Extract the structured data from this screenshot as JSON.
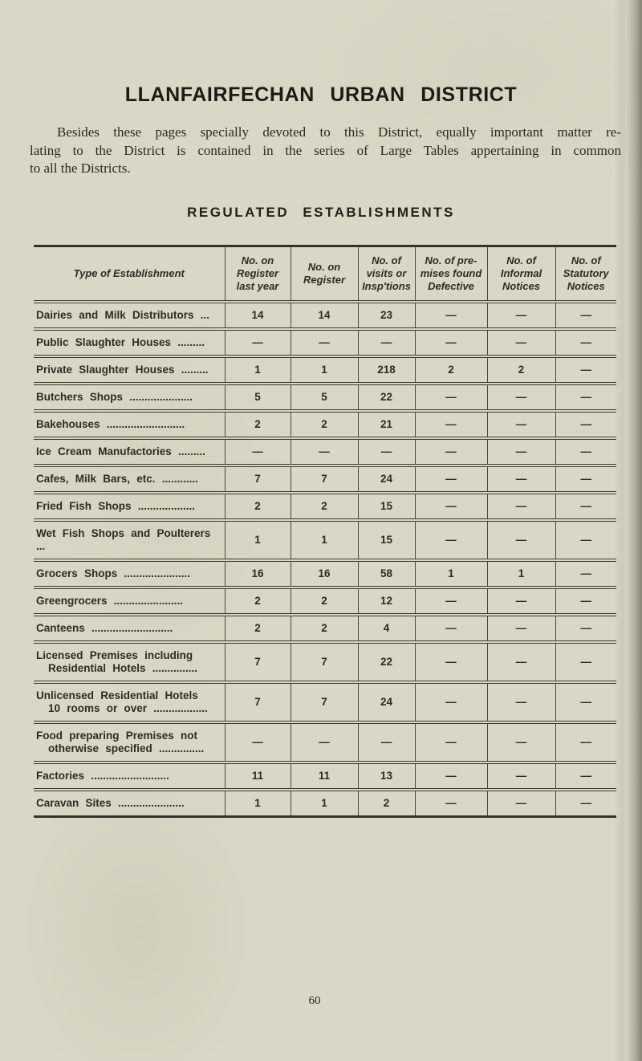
{
  "page": {
    "title": "LLANFAIRFECHAN URBAN DISTRICT",
    "intro_lines": [
      "Besides these pages specially devoted to this District, equally important matter re-",
      "lating to the District is contained in the series of Large Tables appertaining in common",
      "to all the Districts."
    ],
    "page_number": "60"
  },
  "table": {
    "heading": "REGULATED ESTABLISHMENTS",
    "columns": [
      {
        "lines": [
          "Type of Establishment"
        ]
      },
      {
        "lines": [
          "No. on",
          "Register",
          "last year"
        ]
      },
      {
        "lines": [
          "No. on",
          "Register"
        ]
      },
      {
        "lines": [
          "No. of",
          "visits or",
          "Insp'tions"
        ]
      },
      {
        "lines": [
          "No. of pre-",
          "mises found",
          "Defective"
        ]
      },
      {
        "lines": [
          "No. of",
          "Informal",
          "Notices"
        ]
      },
      {
        "lines": [
          "No. of",
          "Statutory",
          "Notices"
        ]
      }
    ],
    "rows": [
      {
        "label": "Dairies and Milk Distributors ...",
        "label2": "",
        "values": [
          "14",
          "14",
          "23",
          "—",
          "—",
          "—"
        ]
      },
      {
        "label": "Public Slaughter Houses .........",
        "label2": "",
        "values": [
          "—",
          "—",
          "—",
          "—",
          "—",
          "—"
        ]
      },
      {
        "label": "Private Slaughter Houses .........",
        "label2": "",
        "values": [
          "1",
          "1",
          "218",
          "2",
          "2",
          "—"
        ]
      },
      {
        "label": "Butchers Shops .....................",
        "label2": "",
        "values": [
          "5",
          "5",
          "22",
          "—",
          "—",
          "—"
        ]
      },
      {
        "label": "Bakehouses ..........................",
        "label2": "",
        "values": [
          "2",
          "2",
          "21",
          "—",
          "—",
          "—"
        ]
      },
      {
        "label": "Ice Cream Manufactories .........",
        "label2": "",
        "values": [
          "—",
          "—",
          "—",
          "—",
          "—",
          "—"
        ]
      },
      {
        "label": "Cafes, Milk Bars, etc. ............",
        "label2": "",
        "values": [
          "7",
          "7",
          "24",
          "—",
          "—",
          "—"
        ]
      },
      {
        "label": "Fried Fish Shops ...................",
        "label2": "",
        "values": [
          "2",
          "2",
          "15",
          "—",
          "—",
          "—"
        ]
      },
      {
        "label": "Wet Fish Shops and Poulterers ...",
        "label2": "",
        "values": [
          "1",
          "1",
          "15",
          "—",
          "—",
          "—"
        ]
      },
      {
        "label": "Grocers Shops ......................",
        "label2": "",
        "values": [
          "16",
          "16",
          "58",
          "1",
          "1",
          "—"
        ]
      },
      {
        "label": "Greengrocers .......................",
        "label2": "",
        "values": [
          "2",
          "2",
          "12",
          "—",
          "—",
          "—"
        ]
      },
      {
        "label": "Canteens ...........................",
        "label2": "",
        "values": [
          "2",
          "2",
          "4",
          "—",
          "—",
          "—"
        ]
      },
      {
        "label": "Licensed Premises including",
        "label2": "Residential Hotels ...............",
        "values": [
          "7",
          "7",
          "22",
          "—",
          "—",
          "—"
        ]
      },
      {
        "label": "Unlicensed Residential Hotels",
        "label2": "10 rooms or over ..................",
        "values": [
          "7",
          "7",
          "24",
          "—",
          "—",
          "—"
        ]
      },
      {
        "label": "Food preparing Premises not",
        "label2": "otherwise specified ...............",
        "values": [
          "—",
          "—",
          "—",
          "—",
          "—",
          "—"
        ]
      },
      {
        "label": "Factories ..........................",
        "label2": "",
        "values": [
          "11",
          "11",
          "13",
          "—",
          "—",
          "—"
        ]
      },
      {
        "label": "Caravan Sites ......................",
        "label2": "",
        "values": [
          "1",
          "1",
          "2",
          "—",
          "—",
          "—"
        ]
      }
    ]
  }
}
